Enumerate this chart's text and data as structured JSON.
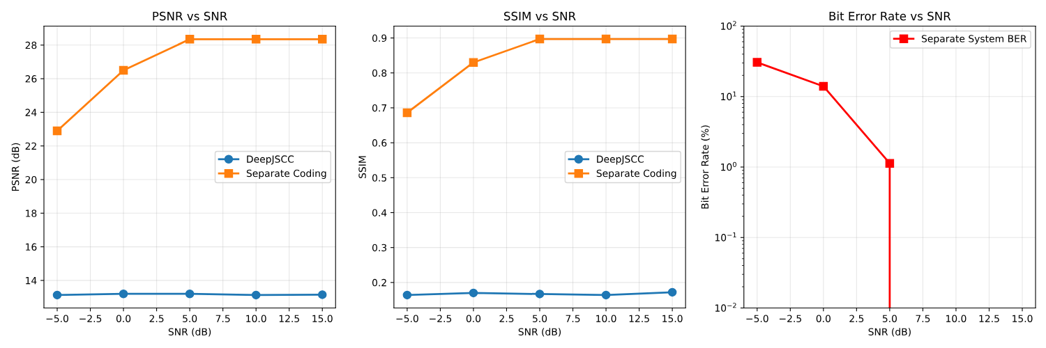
{
  "chart_data": [
    {
      "type": "line",
      "title": "PSNR vs SNR",
      "xlabel": "SNR (dB)",
      "ylabel": "PSNR (dB)",
      "x": [
        -5,
        0,
        5,
        10,
        15
      ],
      "series": [
        {
          "name": "DeepJSCC",
          "color": "#1f77b4",
          "marker": "circle",
          "values": [
            13.13,
            13.2,
            13.2,
            13.13,
            13.15
          ]
        },
        {
          "name": "Separate Coding",
          "color": "#ff7f0e",
          "marker": "square",
          "values": [
            22.9,
            26.5,
            28.35,
            28.35,
            28.35
          ]
        }
      ],
      "xlim": [
        -6,
        16
      ],
      "xticks": [
        {
          "value": -5,
          "label": "−5.0"
        },
        {
          "value": -2.5,
          "label": "−2.5"
        },
        {
          "value": 0,
          "label": "0.0"
        },
        {
          "value": 2.5,
          "label": "2.5"
        },
        {
          "value": 5,
          "label": "5.0"
        },
        {
          "value": 7.5,
          "label": "7.5"
        },
        {
          "value": 10,
          "label": "10.0"
        },
        {
          "value": 12.5,
          "label": "12.5"
        },
        {
          "value": 15,
          "label": "15.0"
        }
      ],
      "ylim": [
        12.36,
        29.13
      ],
      "yticks": [
        14,
        16,
        18,
        20,
        22,
        24,
        26,
        28
      ],
      "grid": true,
      "legend": "center right"
    },
    {
      "type": "line",
      "title": "SSIM vs SNR",
      "xlabel": "SNR (dB)",
      "ylabel": "SSIM",
      "x": [
        -5,
        0,
        5,
        10,
        15
      ],
      "series": [
        {
          "name": "DeepJSCC",
          "color": "#1f77b4",
          "marker": "circle",
          "values": [
            0.164,
            0.17,
            0.167,
            0.164,
            0.172
          ]
        },
        {
          "name": "Separate Coding",
          "color": "#ff7f0e",
          "marker": "square",
          "values": [
            0.686,
            0.83,
            0.897,
            0.897,
            0.897
          ]
        }
      ],
      "xlim": [
        -6,
        16
      ],
      "xticks": [
        {
          "value": -5,
          "label": "−5.0"
        },
        {
          "value": -2.5,
          "label": "−2.5"
        },
        {
          "value": 0,
          "label": "0.0"
        },
        {
          "value": 2.5,
          "label": "2.5"
        },
        {
          "value": 5,
          "label": "5.0"
        },
        {
          "value": 7.5,
          "label": "7.5"
        },
        {
          "value": 10,
          "label": "10.0"
        },
        {
          "value": 12.5,
          "label": "12.5"
        },
        {
          "value": 15,
          "label": "15.0"
        }
      ],
      "ylim": [
        0.127,
        0.934
      ],
      "yticks": [
        {
          "value": 0.2,
          "label": "0.2"
        },
        {
          "value": 0.3,
          "label": "0.3"
        },
        {
          "value": 0.4,
          "label": "0.4"
        },
        {
          "value": 0.5,
          "label": "0.5"
        },
        {
          "value": 0.6,
          "label": "0.6"
        },
        {
          "value": 0.7,
          "label": "0.7"
        },
        {
          "value": 0.8,
          "label": "0.8"
        },
        {
          "value": 0.9,
          "label": "0.9"
        }
      ],
      "grid": true,
      "legend": "center right"
    },
    {
      "type": "line",
      "title": "Bit Error Rate vs SNR",
      "xlabel": "SNR (dB)",
      "ylabel": "Bit Error Rate (%)",
      "log": "y",
      "series": [
        {
          "name": "Separate System BER",
          "color": "#ff0000",
          "marker": "square",
          "x": [
            -5,
            0,
            5
          ],
          "values": [
            30.6,
            14.0,
            1.13
          ]
        },
        {
          "color": "#ff0000",
          "marker": "none",
          "x": [
            5,
            5
          ],
          "values": [
            1.13,
            0.01
          ]
        }
      ],
      "xlim": [
        -6,
        16
      ],
      "xticks": [
        {
          "value": -5,
          "label": "−5.0"
        },
        {
          "value": -2.5,
          "label": "−2.5"
        },
        {
          "value": 0,
          "label": "0.0"
        },
        {
          "value": 2.5,
          "label": "2.5"
        },
        {
          "value": 5,
          "label": "5.0"
        },
        {
          "value": 7.5,
          "label": "7.5"
        },
        {
          "value": 10,
          "label": "10.0"
        },
        {
          "value": 12.5,
          "label": "12.5"
        },
        {
          "value": 15,
          "label": "15.0"
        }
      ],
      "ylim": [
        0.01,
        100
      ],
      "yticks": [
        {
          "value": 0.01,
          "label": "10$^{−2}$"
        },
        {
          "value": 0.1,
          "label": "10$^{−1}$"
        },
        {
          "value": 1,
          "label": "10$^{0}$"
        },
        {
          "value": 10,
          "label": "10$^{1}$"
        },
        {
          "value": 100,
          "label": "10$^{2}$"
        }
      ],
      "grid": true,
      "legend": "upper right"
    }
  ]
}
